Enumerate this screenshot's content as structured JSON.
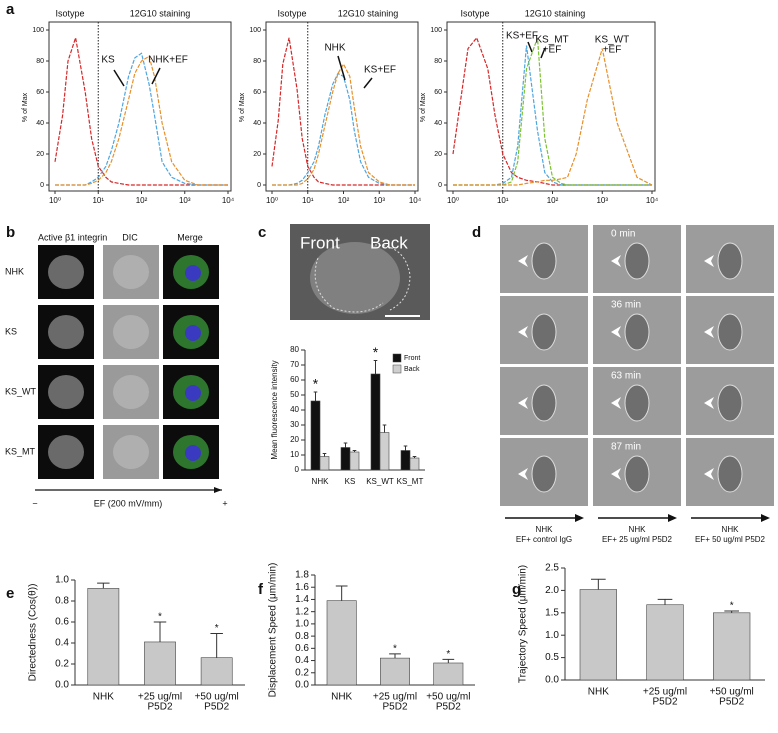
{
  "figure": {
    "letters": [
      "a",
      "b",
      "c",
      "d",
      "e",
      "f",
      "g"
    ],
    "b": {
      "columns": [
        "Active β1 integrin",
        "DIC",
        "Merge"
      ],
      "rows": [
        "NHK",
        "KS",
        "KS_WT",
        "KS_MT"
      ],
      "axis_label": "EF (200 mV/mm)",
      "minus": "−",
      "plus": "+"
    },
    "c": {
      "image_labels": [
        "Front",
        "Back"
      ]
    },
    "d": {
      "times": [
        "0 min",
        "36 min",
        "63 min",
        "87 min"
      ],
      "conditions": [
        [
          "NHK",
          "EF+ control IgG"
        ],
        [
          "NHK",
          "EF+ 25 ug/ml P5D2"
        ],
        [
          "NHK",
          "EF+ 50 ug/ml P5D2"
        ]
      ]
    }
  },
  "chart_data": [
    {
      "type": "line",
      "xscale": "log",
      "line_style": "dashed",
      "ylabel": "% of Max",
      "x": [
        1,
        1.5,
        2,
        3,
        5,
        7,
        10,
        15,
        20,
        30,
        50,
        70,
        100,
        150,
        200,
        300,
        500,
        1000,
        2000,
        5000,
        10000
      ],
      "xlim": [
        1,
        10000
      ],
      "xticks": [
        {
          "value": 1,
          "label": "10⁰"
        },
        {
          "value": 10,
          "label": "10¹"
        },
        {
          "value": 100,
          "label": "10²"
        },
        {
          "value": 1000,
          "label": "10³"
        },
        {
          "value": 10000,
          "label": "10⁴"
        }
      ],
      "ylim": [
        0,
        100
      ],
      "yticks": [
        0,
        20,
        40,
        60,
        80,
        100
      ],
      "threshold": 10,
      "annotations": [
        "Isotype",
        "12G10 staining",
        "KS",
        "NHK+EF"
      ],
      "series": [
        {
          "color": "#d62728",
          "values": [
            15,
            45,
            80,
            95,
            60,
            30,
            12,
            5,
            2,
            1,
            0,
            0,
            0,
            0,
            0,
            0,
            0,
            0,
            0,
            0,
            0
          ]
        },
        {
          "color": "#4ea6e0",
          "values": [
            0,
            0,
            0,
            0,
            0,
            2,
            5,
            12,
            22,
            40,
            70,
            82,
            85,
            65,
            45,
            15,
            5,
            1,
            0,
            0,
            0
          ]
        },
        {
          "color": "#e8902a",
          "values": [
            0,
            0,
            0,
            0,
            0,
            1,
            3,
            8,
            15,
            30,
            55,
            72,
            80,
            83,
            70,
            40,
            15,
            3,
            0,
            0,
            0
          ]
        }
      ]
    },
    {
      "type": "line",
      "xscale": "log",
      "line_style": "dashed",
      "ylabel": "% of Max",
      "x": [
        1,
        1.5,
        2,
        3,
        5,
        7,
        10,
        15,
        20,
        30,
        50,
        70,
        100,
        150,
        200,
        300,
        500,
        1000,
        2000,
        5000,
        10000
      ],
      "xlim": [
        1,
        10000
      ],
      "xticks": [
        {
          "value": 1,
          "label": "10⁰"
        },
        {
          "value": 10,
          "label": "10¹"
        },
        {
          "value": 100,
          "label": "10²"
        },
        {
          "value": 1000,
          "label": "10³"
        },
        {
          "value": 10000,
          "label": "10⁴"
        }
      ],
      "ylim": [
        0,
        100
      ],
      "yticks": [
        0,
        20,
        40,
        60,
        80,
        100
      ],
      "threshold": 10,
      "annotations": [
        "Isotype",
        "12G10 staining",
        "NHK",
        "KS+EF"
      ],
      "series": [
        {
          "color": "#d62728",
          "values": [
            12,
            42,
            78,
            95,
            62,
            30,
            12,
            5,
            2,
            1,
            0,
            0,
            0,
            0,
            0,
            0,
            0,
            0,
            0,
            0,
            0
          ]
        },
        {
          "color": "#4ea6e0",
          "values": [
            0,
            0,
            0,
            0,
            1,
            3,
            8,
            15,
            25,
            45,
            65,
            72,
            70,
            55,
            35,
            15,
            5,
            1,
            0,
            0,
            0
          ]
        },
        {
          "color": "#e8902a",
          "values": [
            0,
            0,
            0,
            0,
            0,
            1,
            4,
            10,
            20,
            38,
            60,
            72,
            78,
            70,
            50,
            25,
            8,
            2,
            0,
            0,
            0
          ]
        }
      ]
    },
    {
      "type": "line",
      "xscale": "log",
      "line_style": "dashed",
      "ylabel": "% of Max",
      "x": [
        1,
        1.5,
        2,
        3,
        5,
        7,
        10,
        15,
        20,
        30,
        50,
        70,
        100,
        150,
        200,
        300,
        500,
        1000,
        2000,
        5000,
        10000
      ],
      "xlim": [
        1,
        10000
      ],
      "xticks": [
        {
          "value": 1,
          "label": "10⁰"
        },
        {
          "value": 10,
          "label": "10¹"
        },
        {
          "value": 100,
          "label": "10²"
        },
        {
          "value": 1000,
          "label": "10³"
        },
        {
          "value": 10000,
          "label": "10⁴"
        }
      ],
      "ylim": [
        0,
        100
      ],
      "yticks": [
        0,
        20,
        40,
        60,
        80,
        100
      ],
      "threshold": 10,
      "annotations": [
        "Isotype",
        "12G10 staining",
        "KS+EF",
        [
          "KS_MT",
          "+EF"
        ],
        [
          "KS_WT",
          "+EF"
        ]
      ],
      "series": [
        {
          "color": "#d62728",
          "values": [
            20,
            60,
            88,
            95,
            75,
            45,
            20,
            8,
            5,
            3,
            2,
            1,
            0,
            0,
            0,
            0,
            0,
            0,
            0,
            0,
            0
          ]
        },
        {
          "color": "#4ea6e0",
          "values": [
            0,
            0,
            0,
            0,
            0,
            0,
            1,
            5,
            25,
            90,
            35,
            8,
            2,
            0,
            0,
            0,
            0,
            0,
            0,
            0,
            0
          ]
        },
        {
          "color": "#7cc231",
          "values": [
            0,
            0,
            0,
            0,
            0,
            0,
            0,
            2,
            15,
            75,
            95,
            30,
            5,
            1,
            0,
            0,
            0,
            0,
            0,
            0,
            0
          ]
        },
        {
          "color": "#e8902a",
          "values": [
            0,
            0,
            0,
            0,
            0,
            0,
            0,
            0,
            0,
            1,
            2,
            3,
            3,
            4,
            5,
            20,
            55,
            88,
            40,
            5,
            0
          ]
        }
      ]
    },
    {
      "type": "bar",
      "ylabel": "Mean fluorescence intensity",
      "categories": [
        "NHK",
        "KS",
        "KS_WT",
        "KS_MT"
      ],
      "ylim": [
        0,
        80
      ],
      "yticks": [
        0,
        10,
        20,
        30,
        40,
        50,
        60,
        70,
        80
      ],
      "legend": "upper right",
      "series": [
        {
          "name": "Front",
          "color": "#111111",
          "values": [
            46,
            15,
            64,
            13
          ],
          "errors": [
            6,
            3,
            9,
            3
          ],
          "significance": [
            "*",
            null,
            "*",
            null
          ]
        },
        {
          "name": "Back",
          "color": "#cfcfcf",
          "values": [
            9,
            12,
            25,
            8
          ],
          "errors": [
            2,
            1,
            5,
            1
          ]
        }
      ]
    },
    {
      "type": "bar",
      "ylabel": "Directedness  (Cos(θ))",
      "categories": [
        "NHK",
        [
          "+25 ug/ml",
          "P5D2"
        ],
        [
          "+50 ug/ml",
          "P5D2"
        ]
      ],
      "values": [
        0.92,
        0.41,
        0.26
      ],
      "errors": [
        0.05,
        0.19,
        0.23
      ],
      "significance": [
        null,
        "*",
        "*"
      ],
      "color": "#c8c8c8",
      "ylim": [
        0,
        1
      ],
      "yticks": [
        {
          "value": 0,
          "label": "0.0"
        },
        0.2,
        0.4,
        0.6,
        0.8,
        {
          "value": 1,
          "label": "1.0"
        }
      ]
    },
    {
      "type": "bar",
      "ylabel": "Displacement Speed (μm/min)",
      "categories": [
        "NHK",
        [
          "+25 ug/ml",
          "P5D2"
        ],
        [
          "+50 ug/ml",
          "P5D2"
        ]
      ],
      "values": [
        1.38,
        0.44,
        0.36
      ],
      "errors": [
        0.24,
        0.07,
        0.06
      ],
      "significance": [
        null,
        "*",
        "*"
      ],
      "color": "#c8c8c8",
      "ylim": [
        0,
        1.8
      ],
      "yticks": [
        {
          "value": 0,
          "label": "0.0"
        },
        0.2,
        0.4,
        0.6,
        0.8,
        {
          "value": 1,
          "label": "1.0"
        },
        1.2,
        1.4,
        1.6,
        1.8
      ]
    },
    {
      "type": "bar",
      "ylabel": "Trajectory Speed (μm/min)",
      "categories": [
        "NHK",
        [
          "+25 ug/ml",
          "P5D2"
        ],
        [
          "+50 ug/ml",
          "P5D2"
        ]
      ],
      "values": [
        2.02,
        1.68,
        1.5
      ],
      "errors": [
        0.23,
        0.12,
        0.04
      ],
      "significance": [
        null,
        null,
        "*"
      ],
      "color": "#c8c8c8",
      "ylim": [
        0,
        2.5
      ],
      "yticks": [
        {
          "value": 0,
          "label": "0.0"
        },
        0.5,
        {
          "value": 1,
          "label": "1.0"
        },
        1.5,
        {
          "value": 2,
          "label": "2.0"
        },
        2.5
      ]
    }
  ]
}
